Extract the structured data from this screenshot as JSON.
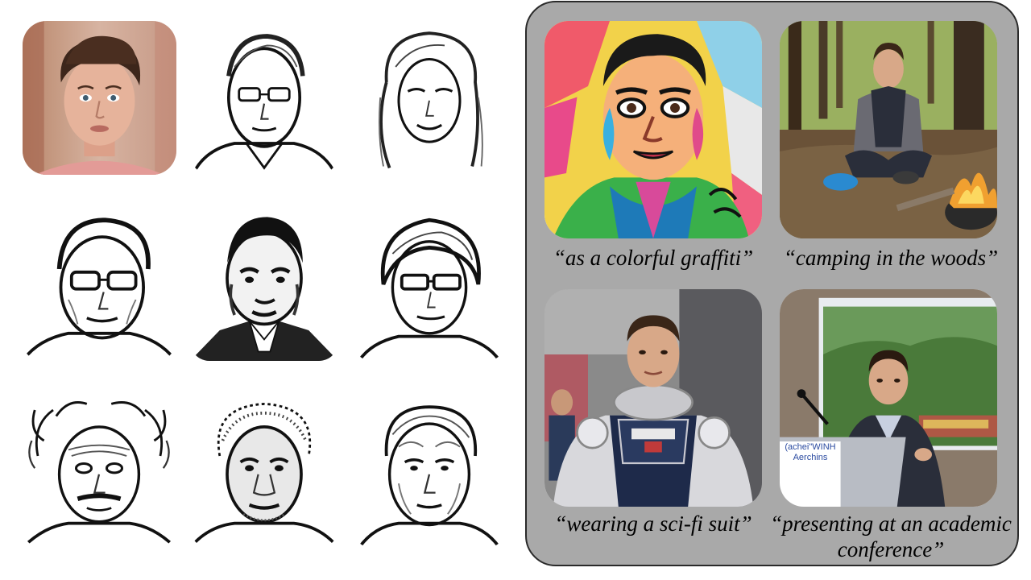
{
  "left_grid": {
    "reference_photo": {
      "icon": "portrait-photo"
    },
    "sketches": [
      {
        "icon": "sketch-portrait"
      },
      {
        "icon": "sketch-portrait"
      },
      {
        "icon": "sketch-portrait"
      },
      {
        "icon": "sketch-portrait"
      },
      {
        "icon": "sketch-portrait"
      },
      {
        "icon": "sketch-portrait"
      },
      {
        "icon": "sketch-portrait"
      },
      {
        "icon": "sketch-portrait"
      }
    ]
  },
  "right_panel": {
    "background_color": "#a9a9a9",
    "captions": {
      "graffiti": "“as a colorful graffiti”",
      "camping": "“camping in the woods”",
      "scifi": "“wearing a sci-fi suit”",
      "conference": "“presenting at an academic conference”"
    },
    "podium_text": {
      "line1": "(achei\"WINH",
      "line2": "Aerchins"
    }
  }
}
